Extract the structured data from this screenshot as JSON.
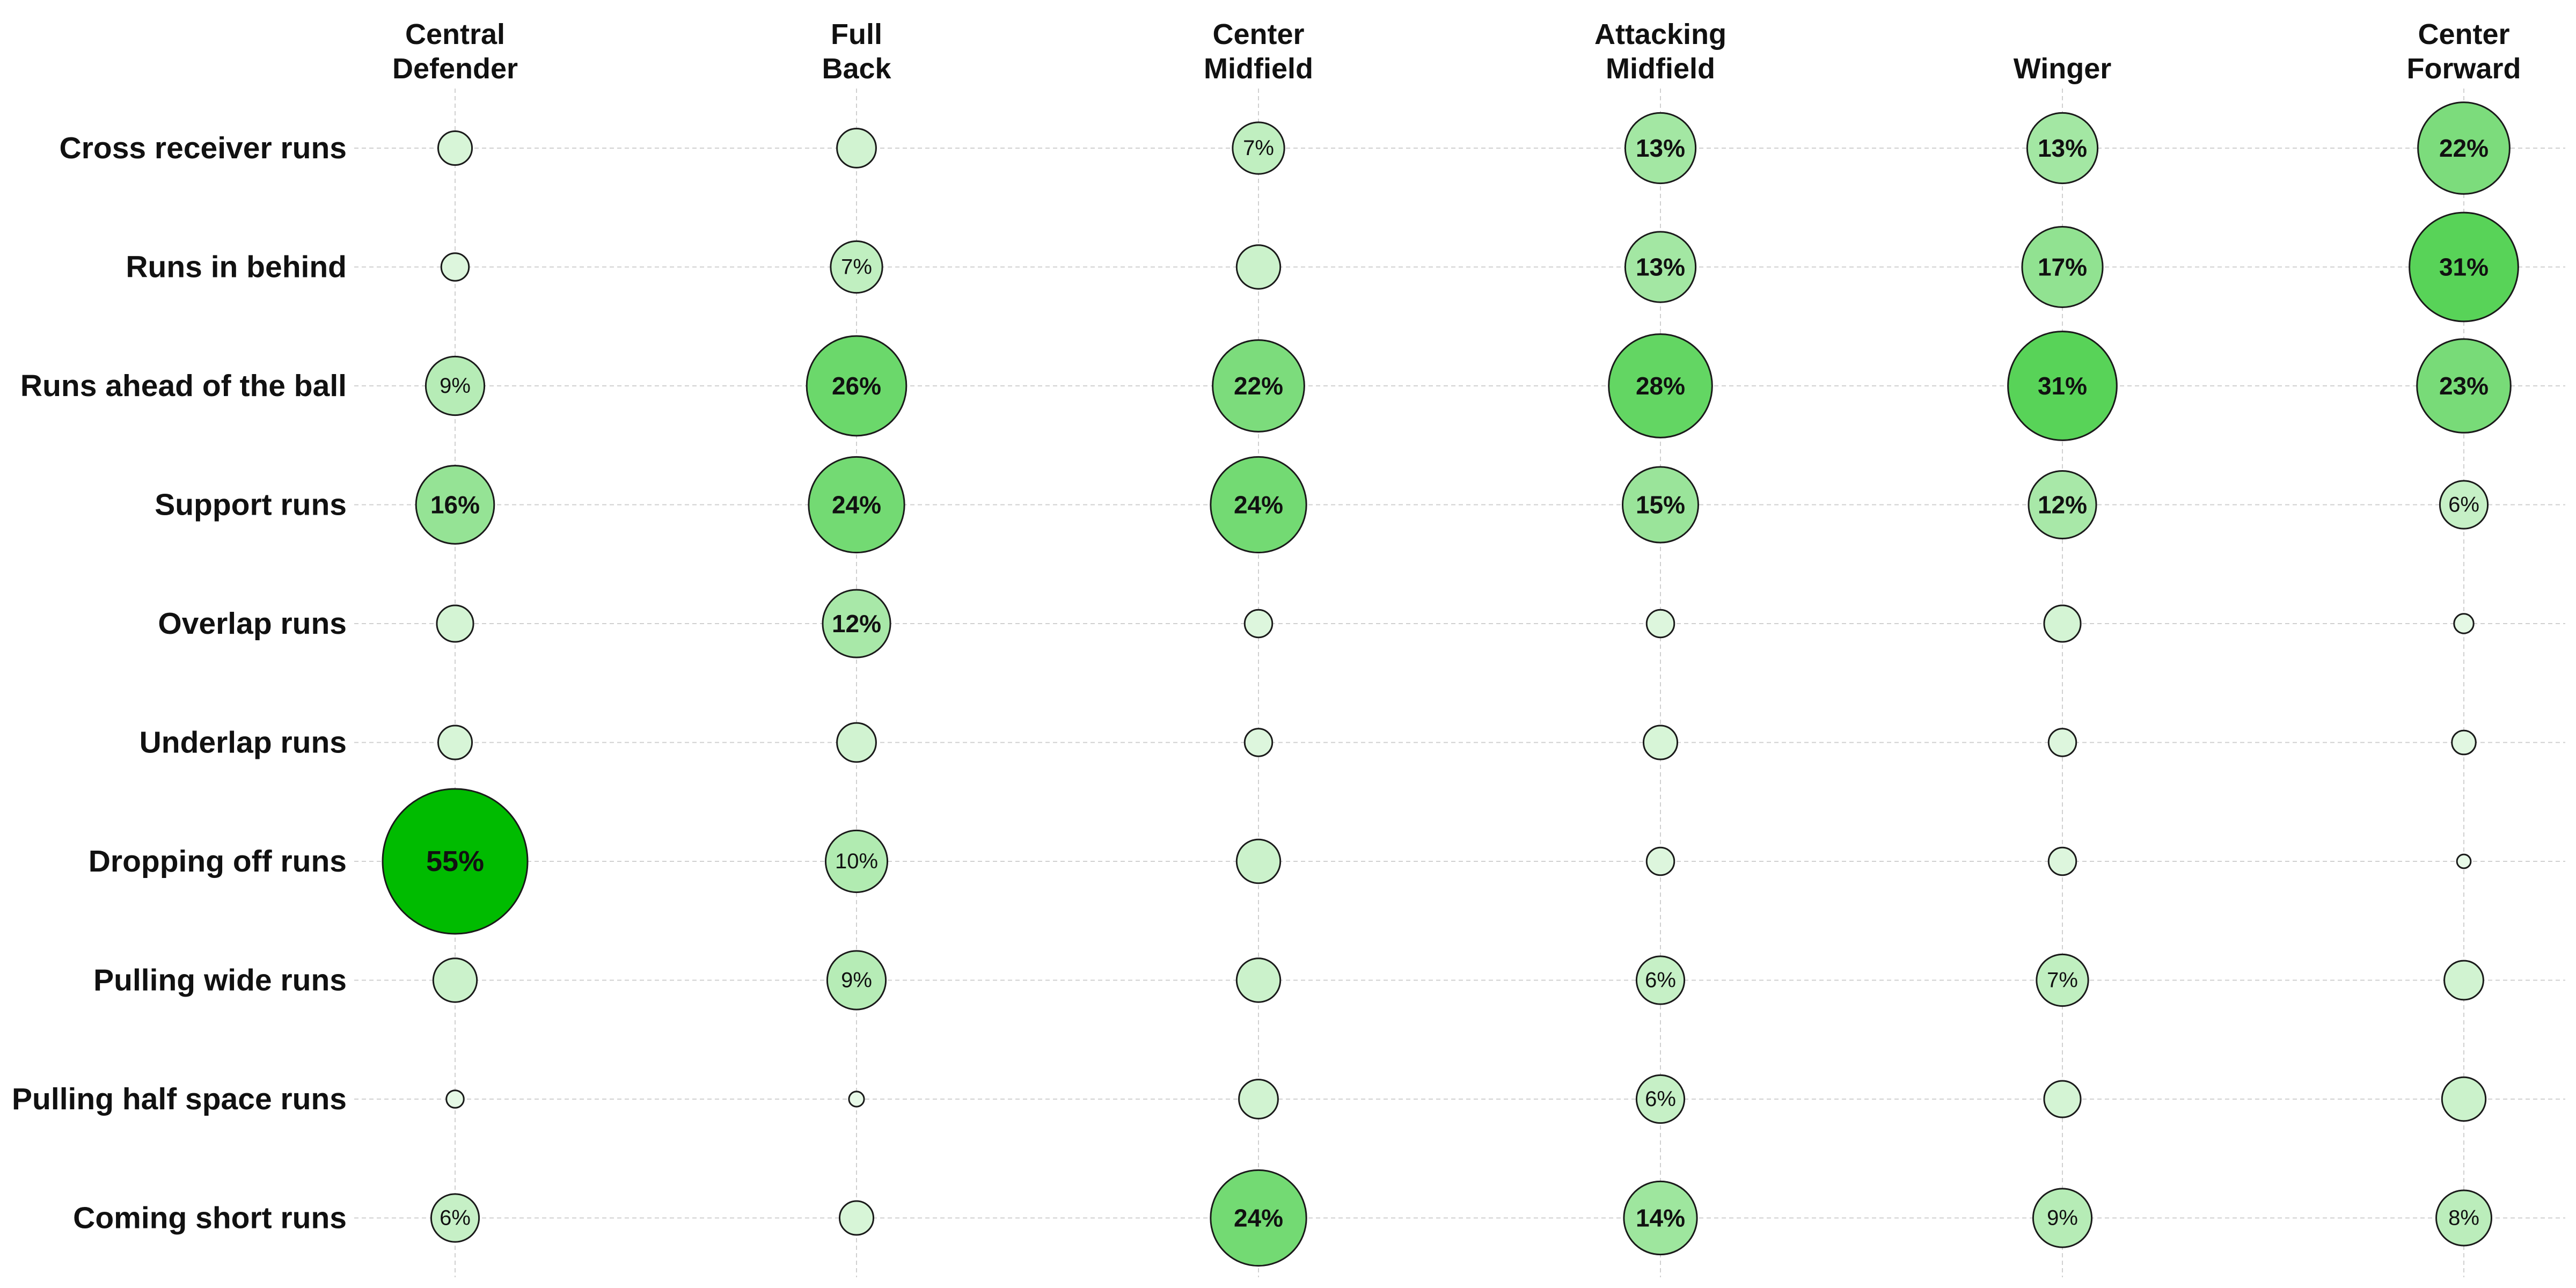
{
  "chart_data": {
    "type": "bubble-matrix",
    "title": "",
    "columns": [
      [
        "Central",
        "Defender"
      ],
      [
        "Full",
        "Back"
      ],
      [
        "Center",
        "Midfield"
      ],
      [
        "Attacking",
        "Midfield"
      ],
      [
        "Winger"
      ],
      [
        "Center",
        "Forward"
      ]
    ],
    "rows": [
      "Cross receiver runs",
      "Runs in behind",
      "Runs ahead of the ball",
      "Support runs",
      "Overlap runs",
      "Underlap runs",
      "Dropping off runs",
      "Pulling wide runs",
      "Pulling half space runs",
      "Coming short runs"
    ],
    "unit": "%",
    "label_threshold": 6,
    "values": [
      [
        3,
        4,
        7,
        13,
        13,
        22
      ],
      [
        2,
        7,
        5,
        13,
        17,
        31
      ],
      [
        9,
        26,
        22,
        28,
        31,
        23
      ],
      [
        16,
        24,
        24,
        15,
        12,
        6
      ],
      [
        3.5,
        12,
        2,
        2,
        3.5,
        1
      ],
      [
        3,
        4,
        2,
        3,
        2,
        1.5
      ],
      [
        55,
        10,
        5,
        2,
        2,
        0.5
      ],
      [
        5,
        9,
        5,
        6,
        7,
        4
      ],
      [
        0.8,
        0.6,
        4,
        6,
        3.5,
        5
      ],
      [
        6,
        3,
        24,
        14,
        9,
        8
      ]
    ],
    "color_scale": {
      "min_color": "#eefbee",
      "max_color": "#00bb00"
    },
    "grid": true
  }
}
